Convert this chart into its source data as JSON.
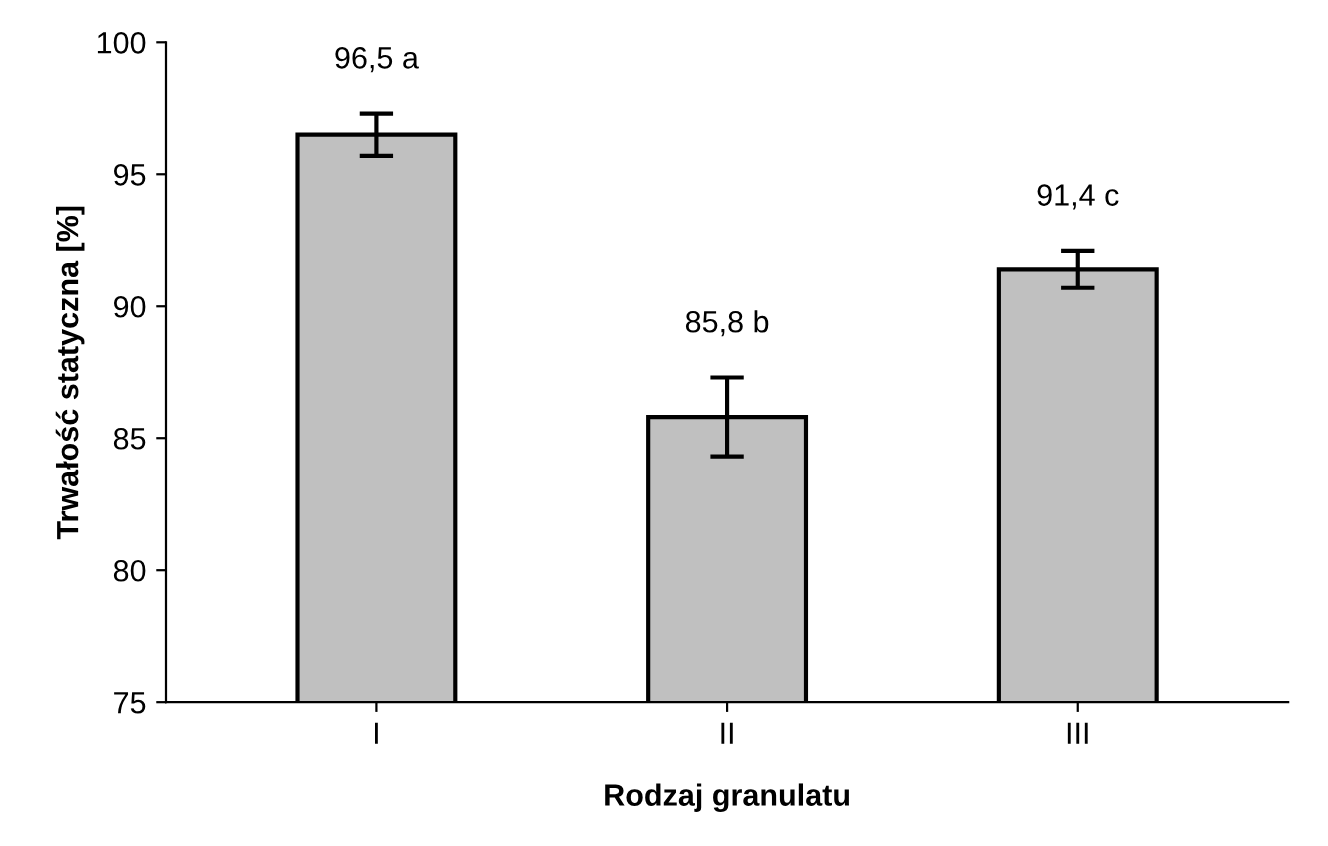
{
  "chart_data": {
    "type": "bar",
    "xlabel": "Rodzaj granulatu",
    "ylabel": "Trwałość statyczna [%]",
    "categories": [
      "I",
      "II",
      "III"
    ],
    "values": [
      96.5,
      85.8,
      91.4
    ],
    "errors": [
      0.8,
      1.5,
      0.7
    ],
    "value_labels": [
      "96,5 a",
      "85,8 b",
      "91,4 c"
    ],
    "color": "#c0c0c0",
    "ylim": [
      75,
      100
    ],
    "yticks": [
      75,
      80,
      85,
      90,
      95,
      100
    ],
    "grid": false,
    "legend": false
  }
}
